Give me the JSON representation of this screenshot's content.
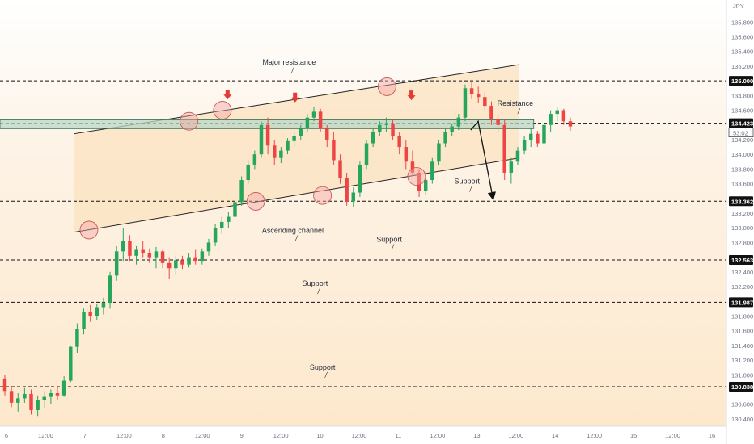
{
  "chart_data": {
    "type": "candlestick",
    "currency": "JPY",
    "price_axis": {
      "min": 130.3,
      "max": 136.1,
      "ticks": [
        "135.600",
        "135.400",
        "135.200",
        "135.000",
        "134.800",
        "134.600",
        "134.400",
        "134.200",
        "134.000",
        "133.800",
        "133.600",
        "133.400",
        "133.200",
        "133.000",
        "132.800",
        "132.600",
        "132.400",
        "132.200",
        "132.000",
        "131.800",
        "131.600",
        "131.400",
        "131.200",
        "131.000",
        "130.800",
        "130.600",
        "130.400"
      ],
      "top_tick": "135.800"
    },
    "time_axis": {
      "labels": [
        "6",
        "12:00",
        "7",
        "12:00",
        "8",
        "12:00",
        "9",
        "12:00",
        "10",
        "12:00",
        "11",
        "12:00",
        "13",
        "12:00",
        "14",
        "12:00",
        "15",
        "12:00",
        "16"
      ],
      "x_min": 0,
      "x_max": 9.8
    },
    "levels": [
      {
        "price": 135.0,
        "label": "135.000",
        "color": "#111111"
      },
      {
        "price": 134.423,
        "label": "134.423",
        "color": "#111111"
      },
      {
        "price": 133.362,
        "label": "133.362",
        "color": "#111111"
      },
      {
        "price": 132.563,
        "label": "132.563",
        "color": "#111111"
      },
      {
        "price": 131.987,
        "label": "131.987",
        "color": "#111111"
      },
      {
        "price": 130.838,
        "label": "130.838",
        "color": "#111111"
      }
    ],
    "countdown_label": "53:02",
    "resistance_zone": {
      "low": 134.35,
      "high": 134.47
    },
    "channel": {
      "upper": {
        "x1": 1.0,
        "y1": 134.28,
        "x2": 7.0,
        "y2": 135.22
      },
      "lower": {
        "x1": 1.0,
        "y1": 132.94,
        "x2": 7.0,
        "y2": 133.95
      },
      "shade_until": 7.0
    },
    "annotations": [
      {
        "text": "Major resistance",
        "x": 3.9,
        "price": 135.22
      },
      {
        "text": "Resistance",
        "x": 6.95,
        "price": 134.66
      },
      {
        "text": "Support",
        "x": 6.3,
        "price": 133.6
      },
      {
        "text": "Ascending channel",
        "x": 3.95,
        "price": 132.93
      },
      {
        "text": "Support",
        "x": 5.25,
        "price": 132.81
      },
      {
        "text": "Support",
        "x": 4.25,
        "price": 132.21
      },
      {
        "text": "Support",
        "x": 4.35,
        "price": 131.07
      }
    ],
    "circles": [
      {
        "x": 1.2,
        "price": 132.97
      },
      {
        "x": 2.55,
        "price": 134.45
      },
      {
        "x": 3.0,
        "price": 134.6
      },
      {
        "x": 3.45,
        "price": 133.36
      },
      {
        "x": 4.35,
        "price": 133.44
      },
      {
        "x": 5.22,
        "price": 134.92
      },
      {
        "x": 5.62,
        "price": 133.7
      }
    ],
    "down_arrows": [
      {
        "x": 3.07,
        "price": 134.78
      },
      {
        "x": 3.98,
        "price": 134.74
      },
      {
        "x": 5.55,
        "price": 134.77
      }
    ],
    "projection": [
      {
        "x": 6.35,
        "price": 134.33
      },
      {
        "x": 6.45,
        "price": 134.45
      },
      {
        "x": 6.65,
        "price": 133.4
      }
    ],
    "candles": [
      [
        130.95,
        131.0,
        130.72,
        130.78
      ],
      [
        130.78,
        130.85,
        130.56,
        130.62
      ],
      [
        130.62,
        130.75,
        130.5,
        130.68
      ],
      [
        130.68,
        130.82,
        130.62,
        130.74
      ],
      [
        130.74,
        130.8,
        130.46,
        130.52
      ],
      [
        130.52,
        130.72,
        130.44,
        130.66
      ],
      [
        130.66,
        130.78,
        130.55,
        130.7
      ],
      [
        130.7,
        130.8,
        130.6,
        130.75
      ],
      [
        130.75,
        130.85,
        130.66,
        130.72
      ],
      [
        130.72,
        130.98,
        130.7,
        130.92
      ],
      [
        130.92,
        131.4,
        130.9,
        131.38
      ],
      [
        131.38,
        131.7,
        131.3,
        131.62
      ],
      [
        131.62,
        131.9,
        131.55,
        131.86
      ],
      [
        131.86,
        131.95,
        131.72,
        131.8
      ],
      [
        131.8,
        131.96,
        131.74,
        131.92
      ],
      [
        131.92,
        132.05,
        131.82,
        131.98
      ],
      [
        131.98,
        132.4,
        131.9,
        132.35
      ],
      [
        132.35,
        132.75,
        132.28,
        132.68
      ],
      [
        132.68,
        133.0,
        132.55,
        132.82
      ],
      [
        132.82,
        132.9,
        132.55,
        132.62
      ],
      [
        132.62,
        132.75,
        132.5,
        132.7
      ],
      [
        132.7,
        132.82,
        132.6,
        132.66
      ],
      [
        132.66,
        132.72,
        132.52,
        132.6
      ],
      [
        132.6,
        132.74,
        132.45,
        132.68
      ],
      [
        132.68,
        132.7,
        132.45,
        132.52
      ],
      [
        132.52,
        132.6,
        132.3,
        132.45
      ],
      [
        132.45,
        132.62,
        132.36,
        132.56
      ],
      [
        132.56,
        132.62,
        132.44,
        132.5
      ],
      [
        132.5,
        132.66,
        132.46,
        132.6
      ],
      [
        132.6,
        132.7,
        132.5,
        132.55
      ],
      [
        132.55,
        132.72,
        132.5,
        132.68
      ],
      [
        132.68,
        132.85,
        132.62,
        132.8
      ],
      [
        132.8,
        133.05,
        132.75,
        133.0
      ],
      [
        133.0,
        133.15,
        132.92,
        133.08
      ],
      [
        133.08,
        133.22,
        133.0,
        133.15
      ],
      [
        133.15,
        133.4,
        133.1,
        133.35
      ],
      [
        133.35,
        133.7,
        133.3,
        133.65
      ],
      [
        133.65,
        133.92,
        133.6,
        133.86
      ],
      [
        133.86,
        134.05,
        133.8,
        134.0
      ],
      [
        134.0,
        134.45,
        133.95,
        134.4
      ],
      [
        134.4,
        134.5,
        134.0,
        134.12
      ],
      [
        134.12,
        134.2,
        133.85,
        133.95
      ],
      [
        133.95,
        134.1,
        133.88,
        134.05
      ],
      [
        134.05,
        134.22,
        134.0,
        134.18
      ],
      [
        134.18,
        134.3,
        134.1,
        134.25
      ],
      [
        134.25,
        134.4,
        134.2,
        134.35
      ],
      [
        134.35,
        134.55,
        134.3,
        134.5
      ],
      [
        134.5,
        134.65,
        134.45,
        134.58
      ],
      [
        134.58,
        134.62,
        134.3,
        134.35
      ],
      [
        134.35,
        134.4,
        134.1,
        134.2
      ],
      [
        134.2,
        134.3,
        133.85,
        133.92
      ],
      [
        133.92,
        134.0,
        133.6,
        133.68
      ],
      [
        133.68,
        133.75,
        133.3,
        133.36
      ],
      [
        133.36,
        133.55,
        133.28,
        133.48
      ],
      [
        133.48,
        133.9,
        133.42,
        133.85
      ],
      [
        133.85,
        134.2,
        133.8,
        134.15
      ],
      [
        134.15,
        134.35,
        134.1,
        134.3
      ],
      [
        134.3,
        134.45,
        134.25,
        134.4
      ],
      [
        134.4,
        134.5,
        134.3,
        134.42
      ],
      [
        134.42,
        134.48,
        134.2,
        134.25
      ],
      [
        134.25,
        134.3,
        134.0,
        134.1
      ],
      [
        134.1,
        134.2,
        133.8,
        133.9
      ],
      [
        133.9,
        134.05,
        133.7,
        133.75
      ],
      [
        133.75,
        133.8,
        133.42,
        133.5
      ],
      [
        133.5,
        133.7,
        133.45,
        133.65
      ],
      [
        133.65,
        133.95,
        133.6,
        133.9
      ],
      [
        133.9,
        134.2,
        133.85,
        134.15
      ],
      [
        134.15,
        134.35,
        134.1,
        134.3
      ],
      [
        134.3,
        134.42,
        134.25,
        134.38
      ],
      [
        134.38,
        134.55,
        134.33,
        134.5
      ],
      [
        134.5,
        134.95,
        134.45,
        134.9
      ],
      [
        134.9,
        135.0,
        134.75,
        134.82
      ],
      [
        134.82,
        134.92,
        134.7,
        134.78
      ],
      [
        134.78,
        134.85,
        134.6,
        134.66
      ],
      [
        134.66,
        134.72,
        134.4,
        134.48
      ],
      [
        134.48,
        134.55,
        134.3,
        134.4
      ],
      [
        134.4,
        134.48,
        133.65,
        133.75
      ],
      [
        133.75,
        133.95,
        133.6,
        133.9
      ],
      [
        133.9,
        134.1,
        133.85,
        134.05
      ],
      [
        134.05,
        134.25,
        134.0,
        134.2
      ],
      [
        134.2,
        134.35,
        134.1,
        134.28
      ],
      [
        134.28,
        134.32,
        134.1,
        134.15
      ],
      [
        134.15,
        134.45,
        134.1,
        134.4
      ],
      [
        134.4,
        134.6,
        134.3,
        134.55
      ],
      [
        134.55,
        134.65,
        134.45,
        134.6
      ],
      [
        134.6,
        134.62,
        134.4,
        134.45
      ],
      [
        134.45,
        134.5,
        134.32,
        134.38
      ]
    ]
  }
}
